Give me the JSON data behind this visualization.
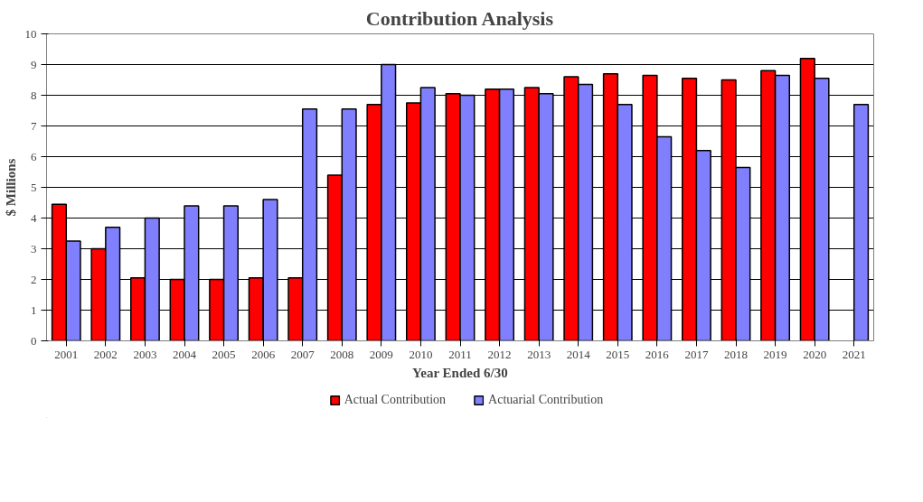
{
  "chart_data": {
    "type": "bar",
    "title": "Contribution Analysis",
    "xlabel": "Year Ended 6/30",
    "ylabel": "$ Millions",
    "categories": [
      "2001",
      "2002",
      "2003",
      "2004",
      "2005",
      "2006",
      "2007",
      "2008",
      "2009",
      "2010",
      "2011",
      "2012",
      "2013",
      "2014",
      "2015",
      "2016",
      "2017",
      "2018",
      "2019",
      "2020",
      "2021"
    ],
    "series": [
      {
        "name": "Actual Contribution",
        "color": "#ff0000",
        "values": [
          4.45,
          3.0,
          2.05,
          2.0,
          2.0,
          2.05,
          2.05,
          5.4,
          7.7,
          7.75,
          8.05,
          8.2,
          8.25,
          8.6,
          8.7,
          8.65,
          8.55,
          8.5,
          8.8,
          9.2,
          null
        ]
      },
      {
        "name": "Actuarial Contribution",
        "color": "#8080ff",
        "values": [
          3.25,
          3.7,
          4.0,
          4.4,
          4.4,
          4.6,
          7.55,
          7.55,
          9.0,
          8.25,
          8.0,
          8.2,
          8.05,
          8.35,
          7.7,
          6.65,
          6.2,
          5.65,
          8.65,
          8.55,
          7.7
        ]
      }
    ],
    "ylim": [
      0,
      10
    ],
    "yticks": [
      0,
      1,
      2,
      3,
      4,
      5,
      6,
      7,
      8,
      9,
      10
    ],
    "grid": "y",
    "legend": "bottom"
  }
}
